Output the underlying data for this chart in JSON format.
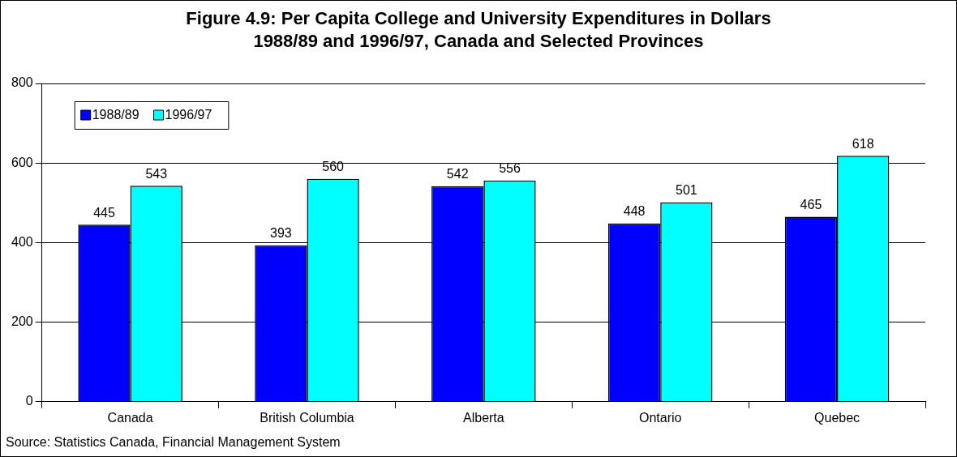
{
  "chart_data": {
    "type": "bar",
    "title": "Figure 4.9:  Per Capita College and University Expenditures in Dollars\n1988/89 and 1996/97, Canada and Selected Provinces",
    "categories": [
      "Canada",
      "British Columbia",
      "Alberta",
      "Ontario",
      "Quebec"
    ],
    "series": [
      {
        "name": "1988/89",
        "color": "#0000ff",
        "values": [
          445,
          393,
          542,
          448,
          465
        ]
      },
      {
        "name": "1996/97",
        "color": "#00ffff",
        "values": [
          543,
          560,
          556,
          501,
          618
        ]
      }
    ],
    "ylim": [
      0,
      800
    ],
    "yticks": [
      0,
      200,
      400,
      600,
      800
    ],
    "grid": "y",
    "legend": "top left",
    "data_labels": true,
    "annotations": [
      "Source:  Statistics Canada, Financial Management System"
    ]
  }
}
